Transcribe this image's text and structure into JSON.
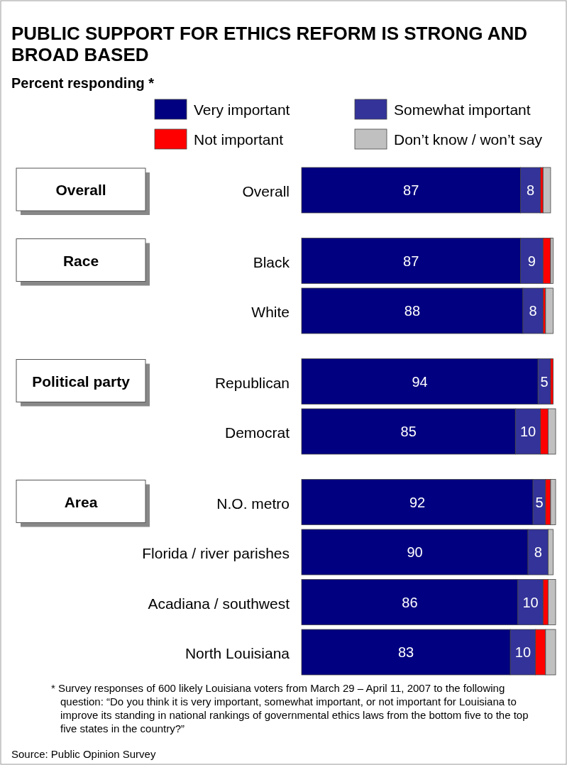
{
  "chart_data": {
    "type": "bar",
    "orientation": "horizontal",
    "stacked": true,
    "title": "PUBLIC SUPPORT FOR ETHICS REFORM IS STRONG AND BROAD BASED",
    "subtitle": "Percent responding *",
    "categories": [
      "Overall",
      "Black",
      "White",
      "Republican",
      "Democrat",
      "N.O. metro",
      "Florida / river parishes",
      "Acadiana / southwest",
      "North Louisiana"
    ],
    "series": [
      {
        "name": "Very important",
        "color": "#000080",
        "values": [
          87,
          87,
          88,
          94,
          85,
          92,
          90,
          86,
          83
        ],
        "value_labels": [
          "87",
          "87",
          "88",
          "94",
          "85",
          "92",
          "90",
          "86",
          "83"
        ]
      },
      {
        "name": "Somewhat important",
        "color": "#333399",
        "values": [
          8,
          9,
          8,
          5,
          10,
          5,
          8,
          10,
          10
        ],
        "value_labels": [
          "8",
          "9",
          "8",
          "5",
          "10",
          "5",
          "8",
          "10",
          "10"
        ]
      },
      {
        "name": "Not important",
        "color": "#ff0000",
        "values": [
          1,
          3,
          1,
          1,
          3,
          2,
          0,
          2,
          4
        ]
      },
      {
        "name": "Don’t know / won’t say",
        "color": "#c0c0c0",
        "values": [
          3,
          1,
          3,
          0,
          3,
          2,
          2,
          3,
          4
        ]
      }
    ],
    "xlim": [
      0,
      101
    ],
    "tick_labels": "y",
    "legend": "top",
    "annotations": [
      "Overall",
      "Race",
      "Political party",
      "Area",
      "* Survey responses of 600 likely Louisiana voters from March 29 – April 11, 2007 to the following question: “Do you think it is very important, somewhat important, or not important for Louisiana to improve its standing in national rankings of governmental ethics laws from the bottom five to the top five states in the country?”",
      "Source: Public Opinion Survey"
    ]
  }
}
